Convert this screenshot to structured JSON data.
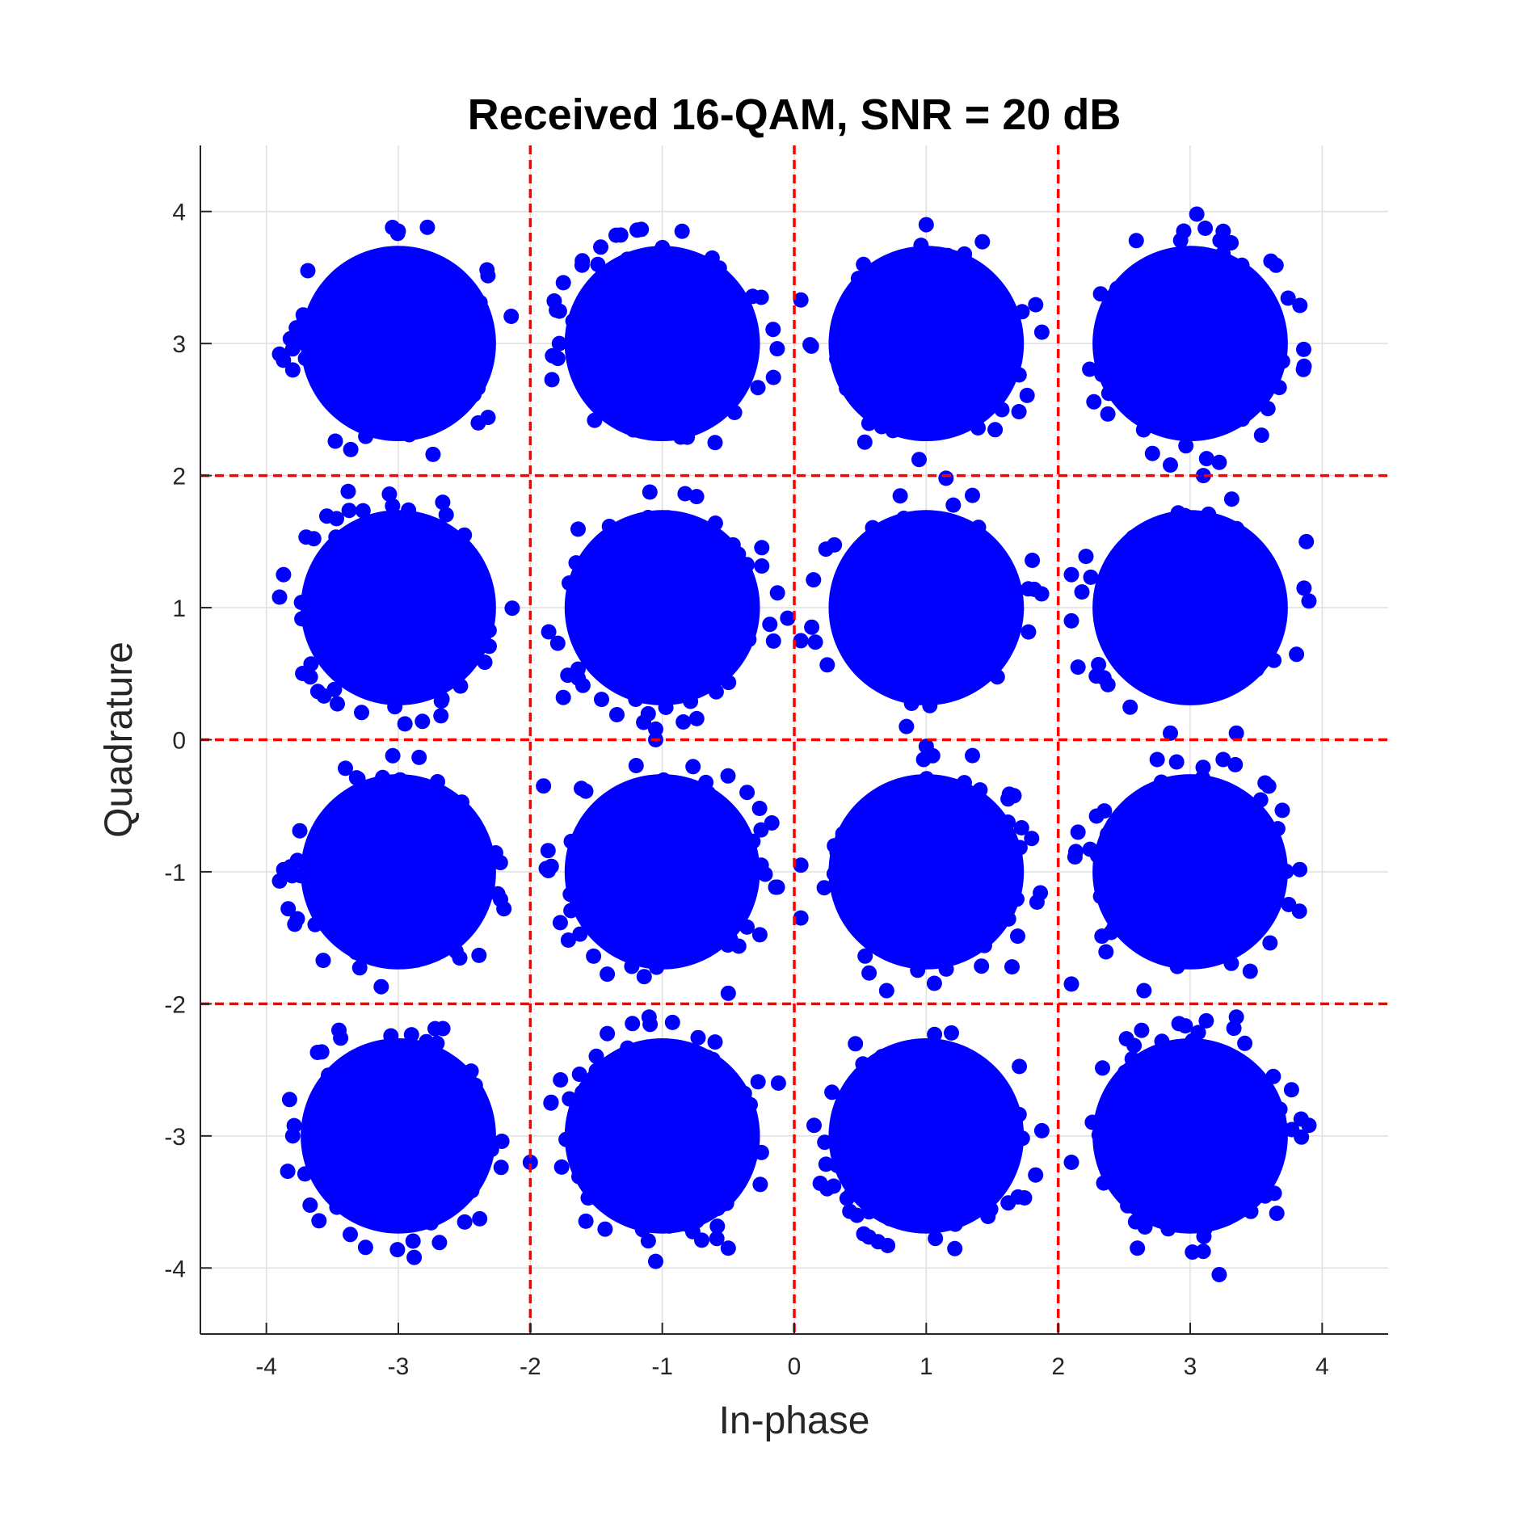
{
  "chart_data": {
    "type": "scatter",
    "title": "Received 16-QAM, SNR = 20 dB",
    "xlabel": "In-phase",
    "ylabel": "Quadrature",
    "xlim": [
      -4.5,
      4.5
    ],
    "ylim": [
      -4.5,
      4.5
    ],
    "xticks": [
      -4,
      -3,
      -2,
      -1,
      0,
      1,
      2,
      3,
      4
    ],
    "yticks": [
      -4,
      -3,
      -2,
      -1,
      0,
      1,
      2,
      3,
      4
    ],
    "xtick_labels": [
      "-4",
      "-3",
      "-2",
      "-1",
      "0",
      "1",
      "2",
      "3",
      "4"
    ],
    "ytick_labels": [
      "-4",
      "-3",
      "-2",
      "-1",
      "0",
      "1",
      "2",
      "3",
      "4"
    ],
    "grid": true,
    "decision_boundaries": {
      "x": [
        -2,
        0,
        2
      ],
      "y": [
        -2,
        0,
        2
      ],
      "color": "#ff0000",
      "style": "dashed"
    },
    "constellation_points": [
      [
        -3,
        3
      ],
      [
        -1,
        3
      ],
      [
        1,
        3
      ],
      [
        3,
        3
      ],
      [
        -3,
        1
      ],
      [
        -1,
        1
      ],
      [
        1,
        1
      ],
      [
        3,
        1
      ],
      [
        -3,
        -1
      ],
      [
        -1,
        -1
      ],
      [
        1,
        -1
      ],
      [
        3,
        -1
      ],
      [
        -3,
        -3
      ],
      [
        -1,
        -3
      ],
      [
        1,
        -3
      ],
      [
        3,
        -3
      ]
    ],
    "cluster_spread": 0.33,
    "points_per_cluster": 260,
    "point_color": "#0000ff",
    "series": [
      {
        "values": [
          [
            -3.9,
            2.92
          ],
          [
            -3.8,
            2.8
          ],
          [
            -2.78,
            3.88
          ],
          [
            -3.38,
            1.88
          ],
          [
            -3.9,
            1.08
          ],
          [
            -3.87,
            1.25
          ],
          [
            -2.95,
            0.12
          ],
          [
            -3.9,
            -1.07
          ],
          [
            -2.2,
            -1.28
          ],
          [
            -2.88,
            -3.92
          ],
          [
            -3.8,
            -3.0
          ],
          [
            -3.45,
            -2.2
          ],
          [
            -1.78,
            3.0
          ],
          [
            -1.35,
            3.82
          ],
          [
            -0.85,
            3.85
          ],
          [
            -0.25,
            3.35
          ],
          [
            -0.6,
            2.25
          ],
          [
            -1.75,
            0.32
          ],
          [
            -0.05,
            0.92
          ],
          [
            -1.05,
            0.08
          ],
          [
            -1.05,
            0.0
          ],
          [
            -1.9,
            -0.35
          ],
          [
            -0.17,
            -0.63
          ],
          [
            -0.25,
            -0.95
          ],
          [
            -0.5,
            -1.92
          ],
          [
            -2.0,
            -3.2
          ],
          [
            -1.05,
            -3.95
          ],
          [
            -0.5,
            -3.85
          ],
          [
            -0.12,
            -2.6
          ],
          [
            -1.1,
            -2.1
          ],
          [
            0.05,
            3.33
          ],
          [
            0.13,
            2.98
          ],
          [
            0.05,
            0.75
          ],
          [
            1.0,
            3.9
          ],
          [
            1.15,
            1.98
          ],
          [
            1.35,
            1.85
          ],
          [
            0.85,
            0.1
          ],
          [
            1.0,
            -0.05
          ],
          [
            1.35,
            -0.12
          ],
          [
            0.05,
            -0.95
          ],
          [
            0.05,
            -1.35
          ],
          [
            0.7,
            -1.9
          ],
          [
            1.65,
            -1.72
          ],
          [
            0.15,
            -2.92
          ],
          [
            2.1,
            1.25
          ],
          [
            2.1,
            0.9
          ],
          [
            2.15,
            0.55
          ],
          [
            3.05,
            3.98
          ],
          [
            3.25,
            3.85
          ],
          [
            2.85,
            2.08
          ],
          [
            3.22,
            2.1
          ],
          [
            3.1,
            2.0
          ],
          [
            2.85,
            0.05
          ],
          [
            3.35,
            0.05
          ],
          [
            2.75,
            -0.15
          ],
          [
            3.25,
            -0.15
          ],
          [
            2.15,
            -0.7
          ],
          [
            2.1,
            -1.85
          ],
          [
            2.65,
            -1.9
          ],
          [
            3.35,
            -2.1
          ],
          [
            3.9,
            -2.92
          ],
          [
            2.6,
            -3.85
          ],
          [
            3.22,
            -4.05
          ],
          [
            2.1,
            -3.2
          ],
          [
            3.9,
            1.05
          ],
          [
            3.88,
            1.5
          ]
        ]
      }
    ]
  }
}
